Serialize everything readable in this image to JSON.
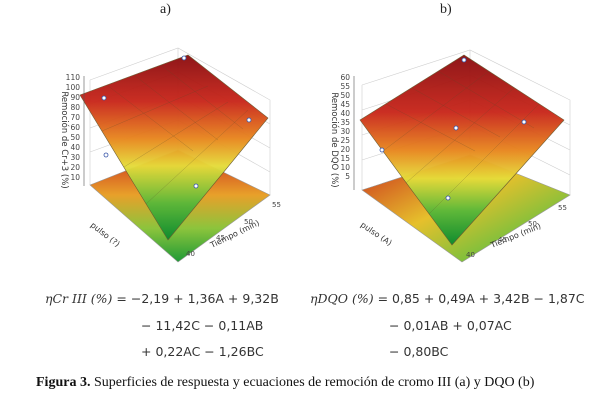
{
  "panels": [
    {
      "label": "a)",
      "zlabel": "Remoción de Cr+3 (%)",
      "ylabel": "pulso (?)",
      "xlabel": "Tiempo (min)",
      "zticks": [
        "110",
        "100",
        "90",
        "80",
        "70",
        "60",
        "50",
        "40",
        "30",
        "20",
        "10"
      ],
      "xticks": [
        "40",
        "45",
        "50",
        "55"
      ],
      "zmax": 110
    },
    {
      "label": "b)",
      "zlabel": "Remoción de DQO (%)",
      "ylabel": "pulso (A)",
      "xlabel": "Tiempo (min)",
      "zticks": [
        "60",
        "55",
        "50",
        "45",
        "40",
        "35",
        "30",
        "25",
        "20",
        "15",
        "10",
        "5"
      ],
      "xticks": [
        "40",
        "45",
        "50",
        "55"
      ],
      "zmax": 60
    }
  ],
  "equations": {
    "a": {
      "lhs": "ηCr III (%)",
      "line1": "= −2,19 + 1,36A + 9,32B",
      "line2": "− 11,42C − 0,11AB",
      "line3": "+ 0,22AC − 1,26BC"
    },
    "b": {
      "lhs": "ηDQO (%)",
      "line1": "= 0,85 + 0,49A + 3,42B − 1,87C",
      "line2": "− 0,01AB + 0,07AC",
      "line3": "− 0,80BC"
    }
  },
  "caption": {
    "bold": "Figura 3.",
    "text": " Superficies de respuesta y ecuaciones de remoción de cromo III (a) y DQO (b)"
  },
  "colors": {
    "dark_red": "#8b0f12",
    "red": "#c9281c",
    "orange": "#e8861f",
    "yellow": "#e6dc3a",
    "green": "#2fa33a",
    "dark_green": "#0b8a2e"
  }
}
